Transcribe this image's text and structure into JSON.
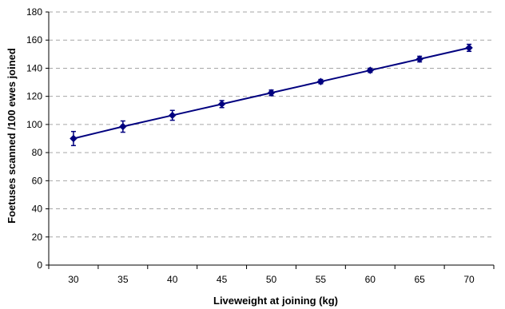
{
  "chart_data": {
    "type": "line",
    "xlabel": "Liveweight at joining (kg)",
    "ylabel": "Foetuses scanned /100 ewes joined",
    "categories": [
      "30",
      "35",
      "40",
      "45",
      "50",
      "55",
      "60",
      "65",
      "70"
    ],
    "y_ticks": [
      "0",
      "20",
      "40",
      "60",
      "80",
      "100",
      "120",
      "140",
      "160",
      "180"
    ],
    "ylim": [
      0,
      180
    ],
    "grid": "horizontal dashed",
    "legend": "none",
    "series": [
      {
        "values": [
          90,
          98.5,
          106.5,
          114.5,
          122.5,
          130.5,
          138.5,
          146.5,
          154.5
        ],
        "error": [
          5,
          4,
          3.5,
          2.5,
          2,
          1.5,
          1.5,
          2,
          2.5
        ],
        "color": "#00007f",
        "marker": "diamond"
      }
    ]
  }
}
